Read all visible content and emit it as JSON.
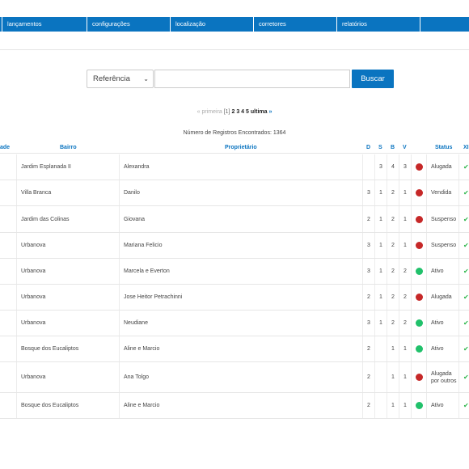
{
  "nav": {
    "items": [
      "lançamentos",
      "configurações",
      "localização",
      "corretores",
      "relatórios"
    ]
  },
  "search": {
    "field_label": "Referência",
    "input_value": "",
    "button_label": "Buscar"
  },
  "pagination": {
    "prev_label": "« primeira",
    "current": "[1]",
    "pages": [
      "2",
      "3",
      "4",
      "5"
    ],
    "last_label": "ultima",
    "next_arrow": "»"
  },
  "records_count": "Número de Registros Encontrados: 1364",
  "table": {
    "headers": {
      "cidade": "ade",
      "bairro": "Bairro",
      "proprietario": "Proprietário",
      "d": "D",
      "s": "S",
      "b": "B",
      "v": "V",
      "status": "Status",
      "x": "XI"
    },
    "rows": [
      {
        "bairro": "Jardim Esplanada II",
        "proprietario": "Alexandra",
        "d": "",
        "s": "3",
        "b": "4",
        "v": "3",
        "status_color": "#c62828",
        "status": "Alugada"
      },
      {
        "bairro": "Villa Branca",
        "proprietario": "Danilo",
        "d": "3",
        "s": "1",
        "b": "2",
        "v": "1",
        "status_color": "#c62828",
        "status": "Vendida"
      },
      {
        "bairro": "Jardim das Colinas",
        "proprietario": "Giovana",
        "d": "2",
        "s": "1",
        "b": "2",
        "v": "1",
        "status_color": "#c62828",
        "status": "Suspenso"
      },
      {
        "bairro": "Urbanova",
        "proprietario": "Mariana Felicio",
        "d": "3",
        "s": "1",
        "b": "2",
        "v": "1",
        "status_color": "#c62828",
        "status": "Suspenso"
      },
      {
        "bairro": "Urbanova",
        "proprietario": "Marcela e Everton",
        "d": "3",
        "s": "1",
        "b": "2",
        "v": "2",
        "status_color": "#21c16b",
        "status": "Ativo"
      },
      {
        "bairro": "Urbanova",
        "proprietario": "Jose Heitor Petrachinni",
        "d": "2",
        "s": "1",
        "b": "2",
        "v": "2",
        "status_color": "#c62828",
        "status": "Alugada"
      },
      {
        "bairro": "Urbanova",
        "proprietario": "Neudiane",
        "d": "3",
        "s": "1",
        "b": "2",
        "v": "2",
        "status_color": "#21c16b",
        "status": "Ativo"
      },
      {
        "bairro": "Bosque dos Eucaliptos",
        "proprietario": "Aline e Marcio",
        "d": "2",
        "s": "",
        "b": "1",
        "v": "1",
        "status_color": "#21c16b",
        "status": "Ativo"
      },
      {
        "bairro": "Urbanova",
        "proprietario": "Ana Tolgo",
        "d": "2",
        "s": "",
        "b": "1",
        "v": "1",
        "status_color": "#c62828",
        "status": "Alugada por outros"
      },
      {
        "bairro": "Bosque dos Eucaliptos",
        "proprietario": "Aline e Marcio",
        "d": "2",
        "s": "",
        "b": "1",
        "v": "1",
        "status_color": "#21c16b",
        "status": "Ativo"
      }
    ]
  },
  "colors": {
    "primary": "#0a74c0",
    "active": "#21c16b",
    "inactive": "#c62828",
    "edit_mark": "#2db54a"
  },
  "icons": {
    "select_chevron": "chevron-down-icon",
    "row_action": "check-edit-icon"
  }
}
